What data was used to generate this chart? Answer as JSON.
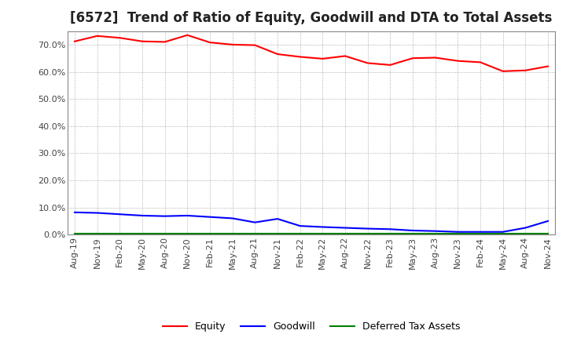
{
  "title": "[6572]  Trend of Ratio of Equity, Goodwill and DTA to Total Assets",
  "x_labels": [
    "Aug-19",
    "Nov-19",
    "Feb-20",
    "May-20",
    "Aug-20",
    "Nov-20",
    "Feb-21",
    "May-21",
    "Aug-21",
    "Nov-21",
    "Feb-22",
    "May-22",
    "Aug-22",
    "Nov-22",
    "Feb-23",
    "May-23",
    "Aug-23",
    "Nov-23",
    "Feb-24",
    "May-24",
    "Aug-24",
    "Nov-24"
  ],
  "equity": [
    71.2,
    73.2,
    72.5,
    71.2,
    71.0,
    73.5,
    70.8,
    70.0,
    69.8,
    66.5,
    65.5,
    64.8,
    65.8,
    63.2,
    62.5,
    65.0,
    65.2,
    64.0,
    63.5,
    60.2,
    60.5,
    62.0
  ],
  "goodwill": [
    8.2,
    8.0,
    7.5,
    7.0,
    6.8,
    7.0,
    6.5,
    6.0,
    4.5,
    5.8,
    3.2,
    2.8,
    2.5,
    2.2,
    2.0,
    1.5,
    1.3,
    1.0,
    1.0,
    1.0,
    2.5,
    5.0
  ],
  "dta": [
    0.3,
    0.3,
    0.3,
    0.3,
    0.3,
    0.3,
    0.3,
    0.3,
    0.3,
    0.3,
    0.3,
    0.3,
    0.3,
    0.3,
    0.3,
    0.3,
    0.3,
    0.3,
    0.3,
    0.3,
    0.3,
    0.3
  ],
  "equity_color": "#FF0000",
  "goodwill_color": "#0000FF",
  "dta_color": "#008000",
  "background_color": "#FFFFFF",
  "plot_bg_color": "#FFFFFF",
  "grid_color": "#999999",
  "ylim": [
    0,
    75
  ],
  "yticks": [
    0,
    10,
    20,
    30,
    40,
    50,
    60,
    70
  ],
  "legend_labels": [
    "Equity",
    "Goodwill",
    "Deferred Tax Assets"
  ],
  "title_fontsize": 12,
  "tick_fontsize": 8,
  "legend_fontsize": 9
}
